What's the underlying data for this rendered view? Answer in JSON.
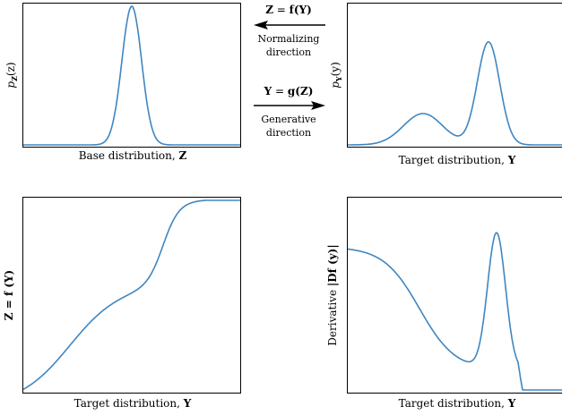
{
  "colors": {
    "curve": "#3f86c0",
    "axes": "#000000",
    "arrow": "#000000"
  },
  "panels": {
    "base": {
      "xlabel_text": "Base distribution, ",
      "xlabel_var": "Z",
      "ylabel_p": "p",
      "ylabel_sub": "Z",
      "ylabel_arg": "(z)"
    },
    "target": {
      "xlabel_text": "Target distribution, ",
      "xlabel_var": "Y",
      "ylabel_p": "p",
      "ylabel_sub": "Y",
      "ylabel_arg": "(y)"
    },
    "transform": {
      "xlabel_text": "Target distribution, ",
      "xlabel_var": "Y",
      "ylabel": "Z = f (Y)"
    },
    "derivative": {
      "xlabel_text": "Target distribution, ",
      "xlabel_var": "Y",
      "ylabel_text": "Derivative ",
      "ylabel_math": "|Df (y)|"
    }
  },
  "arrows": {
    "normalizing": {
      "eq_left": "Z",
      "eq_mid": " = ",
      "eq_f": "f",
      "eq_arg": "(Y)",
      "line1": "Normalizing",
      "line2": "direction",
      "direction": "left"
    },
    "generative": {
      "eq_left": "Y",
      "eq_mid": " = ",
      "eq_f": "g",
      "eq_arg": "(Z)",
      "line1": "Generative",
      "line2": "direction",
      "direction": "right"
    }
  }
}
